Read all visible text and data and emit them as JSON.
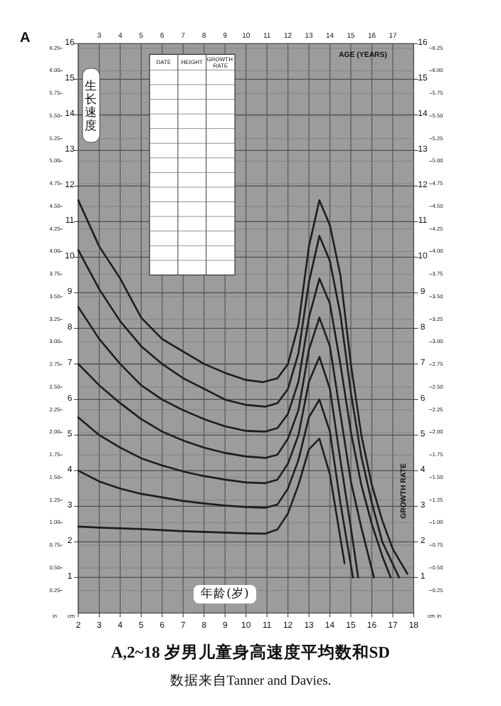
{
  "chart_data": {
    "type": "line",
    "title": "A,2~18 岁男儿童身高速度平均数和SD",
    "subtitle": "数据来自Tanner and Davies.",
    "xlabel": "年龄(岁)",
    "x2label": "AGE (YEARS)",
    "ylabel": "生长速度",
    "y2label": "GROWTH RATE",
    "annotations": [
      "A",
      "DATE",
      "HEIGHT",
      "GROWTH RATE",
      "cm",
      "in"
    ],
    "xlim": [
      2,
      18
    ],
    "xticks": [
      2,
      3,
      4,
      5,
      6,
      7,
      8,
      9,
      10,
      11,
      12,
      13,
      14,
      15,
      16,
      17,
      18
    ],
    "x2lim": [
      2,
      18
    ],
    "x2ticks": [
      3,
      4,
      5,
      6,
      7,
      8,
      9,
      10,
      11,
      12,
      13,
      14,
      15,
      16,
      17
    ],
    "ylim": [
      0,
      16
    ],
    "yticks": [
      1,
      2,
      3,
      4,
      5,
      6,
      7,
      8,
      9,
      10,
      11,
      12,
      13,
      14,
      15,
      16
    ],
    "y2lim": [
      0,
      16
    ],
    "y2ticks": [
      1,
      2,
      3,
      4,
      5,
      6,
      7,
      8,
      9,
      10,
      11,
      12,
      13,
      14,
      15,
      16
    ],
    "y3lim": [
      0,
      6.3
    ],
    "y3ticks": [
      {
        "value": 0.25,
        "label": "0.25"
      },
      {
        "value": 0.5,
        "label": "0.50"
      },
      {
        "value": 0.75,
        "label": "0.75"
      },
      {
        "value": 1,
        "label": "1.00"
      },
      {
        "value": 1.25,
        "label": "1.25"
      },
      {
        "value": 1.5,
        "label": "1.50"
      },
      {
        "value": 1.75,
        "label": "1.75"
      },
      {
        "value": 2,
        "label": "2.00"
      },
      {
        "value": 2.25,
        "label": "2.25"
      },
      {
        "value": 2.5,
        "label": "2.50"
      },
      {
        "value": 2.75,
        "label": "2.75"
      },
      {
        "value": 3,
        "label": "3.00"
      },
      {
        "value": 3.25,
        "label": "3.25"
      },
      {
        "value": 3.5,
        "label": "3.50"
      },
      {
        "value": 3.75,
        "label": "3.75"
      },
      {
        "value": 4,
        "label": "4.00"
      },
      {
        "value": 4.25,
        "label": "4.25"
      },
      {
        "value": 4.5,
        "label": "4.50"
      },
      {
        "value": 4.75,
        "label": "4.75"
      },
      {
        "value": 5,
        "label": "5.00"
      },
      {
        "value": 5.25,
        "label": "5.25"
      },
      {
        "value": 5.5,
        "label": "5.50"
      },
      {
        "value": 5.75,
        "label": "5.75"
      },
      {
        "value": 6,
        "label": "6.00"
      },
      {
        "value": 6.25,
        "label": "6.25"
      }
    ],
    "grid": true,
    "marker": "none",
    "line_style": "solid",
    "series": [
      {
        "color": "#1e1e1e",
        "x": [
          2,
          3,
          4,
          5,
          6,
          7,
          8,
          9,
          10,
          10.8,
          11.5,
          12,
          12.5,
          13,
          13.5,
          14,
          14.5,
          15,
          15.5,
          16,
          16.5,
          17,
          17.7
        ],
        "values": [
          11.6,
          10.3,
          9.4,
          8.3,
          7.7,
          7.35,
          7.0,
          6.75,
          6.55,
          6.49,
          6.6,
          7.0,
          8.1,
          10.3,
          11.6,
          10.9,
          9.5,
          7.0,
          5.0,
          3.6,
          2.6,
          1.8,
          1.1
        ]
      },
      {
        "color": "#1e1e1e",
        "x": [
          2,
          3,
          4,
          5,
          6,
          7,
          8,
          9,
          10,
          10.9,
          11.5,
          12,
          12.5,
          13,
          13.5,
          14,
          14.5,
          15,
          15.5,
          16,
          16.5,
          17.3
        ],
        "values": [
          10.2,
          9.1,
          8.2,
          7.5,
          7.0,
          6.6,
          6.3,
          6.0,
          5.85,
          5.8,
          5.9,
          6.3,
          7.3,
          9.3,
          10.6,
          9.9,
          8.4,
          6.2,
          4.4,
          3.1,
          2.0,
          1.0
        ]
      },
      {
        "color": "#1e1e1e",
        "x": [
          2,
          3,
          4,
          5,
          6,
          7,
          8,
          9,
          10,
          10.9,
          11.5,
          12,
          12.5,
          13,
          13.5,
          14,
          14.5,
          15,
          15.5,
          16,
          16.5,
          16.9
        ],
        "values": [
          8.6,
          7.7,
          7.0,
          6.4,
          6.0,
          5.7,
          5.45,
          5.25,
          5.12,
          5.1,
          5.2,
          5.6,
          6.5,
          8.3,
          9.4,
          8.7,
          7.0,
          5.1,
          3.6,
          2.5,
          1.6,
          1.0
        ]
      },
      {
        "color": "#1e1e1e",
        "x": [
          2,
          3,
          4,
          5,
          6,
          7,
          8,
          9,
          10,
          10.9,
          11.5,
          12,
          12.5,
          13,
          13.5,
          14,
          14.5,
          15,
          15.5,
          16.1
        ],
        "values": [
          7.0,
          6.4,
          5.9,
          5.45,
          5.1,
          4.85,
          4.65,
          4.5,
          4.4,
          4.36,
          4.45,
          4.9,
          5.7,
          7.4,
          8.3,
          7.5,
          5.6,
          3.7,
          2.4,
          1.0
        ]
      },
      {
        "color": "#1e1e1e",
        "x": [
          2,
          3,
          4,
          5,
          6,
          7,
          8,
          9,
          10,
          10.9,
          11.5,
          12,
          12.5,
          13,
          13.5,
          14,
          14.5,
          15,
          15.35
        ],
        "values": [
          5.5,
          5.0,
          4.65,
          4.35,
          4.15,
          3.98,
          3.85,
          3.75,
          3.67,
          3.65,
          3.75,
          4.2,
          5.0,
          6.5,
          7.2,
          6.3,
          4.3,
          2.4,
          1.0
        ]
      },
      {
        "color": "#1e1e1e",
        "x": [
          2,
          3,
          4,
          5,
          6,
          7,
          8,
          9,
          10,
          10.9,
          11.5,
          12,
          12.5,
          13,
          13.5,
          14,
          14.5,
          15.1
        ],
        "values": [
          4.0,
          3.7,
          3.5,
          3.35,
          3.25,
          3.15,
          3.08,
          3.02,
          2.98,
          2.96,
          3.05,
          3.5,
          4.3,
          5.5,
          6.0,
          5.1,
          3.1,
          1.0
        ]
      },
      {
        "color": "#1e1e1e",
        "x": [
          2,
          3,
          4,
          5,
          6,
          7,
          8,
          9,
          10,
          10.9,
          11.5,
          12,
          12.5,
          13,
          13.5,
          14,
          14.7
        ],
        "values": [
          2.43,
          2.4,
          2.38,
          2.36,
          2.33,
          2.3,
          2.28,
          2.26,
          2.24,
          2.23,
          2.35,
          2.8,
          3.6,
          4.6,
          4.9,
          3.9,
          1.4
        ]
      }
    ]
  }
}
